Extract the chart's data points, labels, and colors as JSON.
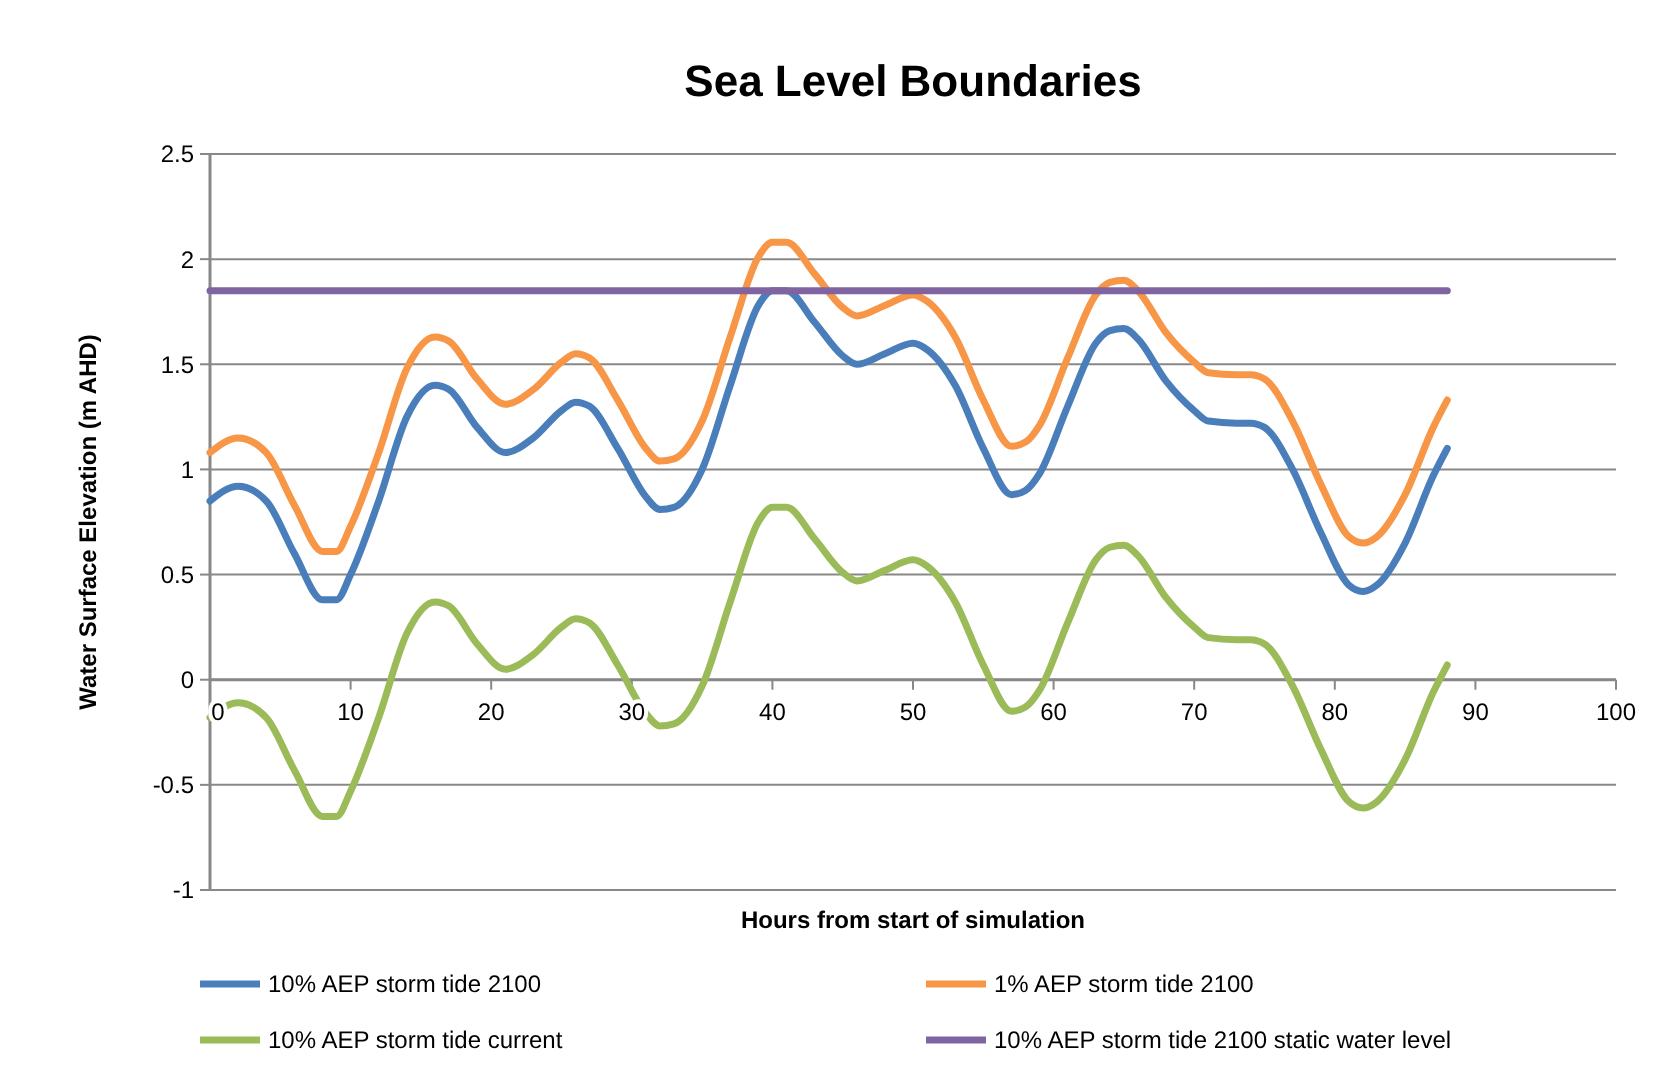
{
  "chart_data": {
    "type": "line",
    "title": "Sea Level Boundaries",
    "xlabel": "Hours from start of simulation",
    "ylabel": "Water Surface Elevation (m AHD)",
    "x": [
      0,
      2,
      4,
      6,
      8,
      9,
      10,
      12,
      14,
      16,
      17,
      19,
      21,
      23,
      25,
      26,
      27,
      29,
      31,
      32,
      33,
      35,
      37,
      39,
      40,
      41,
      43,
      45,
      46,
      48,
      50,
      51,
      53,
      55,
      57,
      58,
      59,
      61,
      63,
      64,
      65,
      66,
      68,
      70,
      71,
      73,
      74,
      75,
      77,
      79,
      81,
      82,
      83,
      85,
      87,
      88
    ],
    "series": [
      {
        "name": "10% AEP storm tide 2100",
        "color": "#4a7ebb",
        "values": [
          0.85,
          0.92,
          0.85,
          0.6,
          0.38,
          0.38,
          0.5,
          0.85,
          1.25,
          1.4,
          1.38,
          1.2,
          1.08,
          1.15,
          1.28,
          1.32,
          1.3,
          1.1,
          0.87,
          0.81,
          0.82,
          1.0,
          1.4,
          1.78,
          1.85,
          1.85,
          1.7,
          1.54,
          1.5,
          1.55,
          1.6,
          1.57,
          1.4,
          1.1,
          0.88,
          0.9,
          0.98,
          1.3,
          1.6,
          1.66,
          1.67,
          1.62,
          1.42,
          1.28,
          1.23,
          1.22,
          1.22,
          1.2,
          1.0,
          0.7,
          0.45,
          0.42,
          0.45,
          0.65,
          0.97,
          1.1
        ]
      },
      {
        "name": "1% AEP storm tide 2100",
        "color": "#f79646",
        "values": [
          1.08,
          1.15,
          1.08,
          0.83,
          0.61,
          0.61,
          0.73,
          1.08,
          1.48,
          1.63,
          1.61,
          1.43,
          1.31,
          1.38,
          1.51,
          1.55,
          1.53,
          1.33,
          1.1,
          1.04,
          1.05,
          1.23,
          1.63,
          2.01,
          2.08,
          2.08,
          1.93,
          1.77,
          1.73,
          1.78,
          1.83,
          1.8,
          1.63,
          1.33,
          1.11,
          1.13,
          1.21,
          1.53,
          1.83,
          1.89,
          1.9,
          1.85,
          1.65,
          1.51,
          1.46,
          1.45,
          1.45,
          1.43,
          1.23,
          0.93,
          0.68,
          0.65,
          0.68,
          0.88,
          1.2,
          1.33
        ]
      },
      {
        "name": "10% AEP storm tide current",
        "color": "#9bbb59",
        "values": [
          -0.18,
          -0.11,
          -0.18,
          -0.43,
          -0.65,
          -0.65,
          -0.53,
          -0.18,
          0.22,
          0.37,
          0.35,
          0.17,
          0.05,
          0.12,
          0.25,
          0.29,
          0.27,
          0.07,
          -0.16,
          -0.22,
          -0.21,
          -0.03,
          0.37,
          0.75,
          0.82,
          0.82,
          0.67,
          0.51,
          0.47,
          0.52,
          0.57,
          0.54,
          0.37,
          0.07,
          -0.15,
          -0.13,
          -0.05,
          0.27,
          0.57,
          0.63,
          0.64,
          0.59,
          0.39,
          0.25,
          0.2,
          0.19,
          0.19,
          0.17,
          -0.03,
          -0.33,
          -0.58,
          -0.61,
          -0.58,
          -0.38,
          -0.06,
          0.07
        ]
      },
      {
        "name": "10% AEP storm tide 2100 static water level",
        "color": "#8064a2",
        "x": [
          0,
          88
        ],
        "values": [
          1.85,
          1.85
        ]
      }
    ],
    "xlim": [
      0,
      100
    ],
    "xticks": [
      0,
      10,
      20,
      30,
      40,
      50,
      60,
      70,
      80,
      90,
      100
    ],
    "ylim": [
      -1,
      2.5
    ],
    "yticks": [
      -1,
      -0.5,
      0,
      0.5,
      1,
      1.5,
      2,
      2.5
    ],
    "grid": "y",
    "legend": "bottom",
    "marker": "none",
    "line_style": "solid"
  }
}
